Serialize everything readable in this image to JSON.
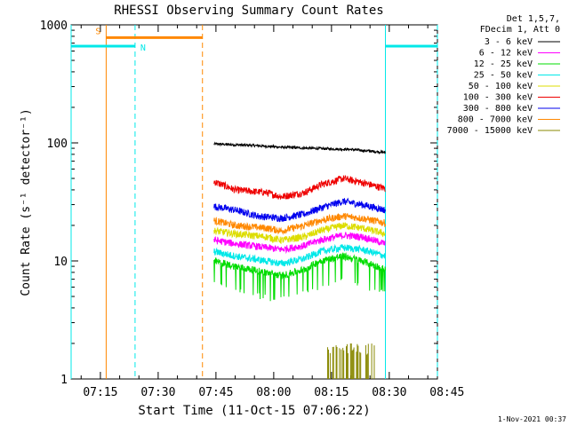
{
  "chart_data": {
    "type": "line",
    "title": "RHESSI Observing Summary Count Rates",
    "xlabel": "Start Time (11-Oct-15 07:06:22)",
    "ylabel": "Count Rate (s⁻¹ detector⁻¹)",
    "yscale": "log",
    "ylim": [
      1,
      1000
    ],
    "xlim_minutes": [
      7.4,
      102.5
    ],
    "x_ticks": [
      {
        "label": "07:15",
        "minute": 15
      },
      {
        "label": "07:30",
        "minute": 30
      },
      {
        "label": "07:45",
        "minute": 45
      },
      {
        "label": "08:00",
        "minute": 60
      },
      {
        "label": "08:15",
        "minute": 75
      },
      {
        "label": "08:30",
        "minute": 90
      },
      {
        "label": "08:45",
        "minute": 105
      }
    ],
    "y_ticks": [
      {
        "label": "1",
        "value": 1
      },
      {
        "label": "10",
        "value": 10
      },
      {
        "label": "100",
        "value": 100
      },
      {
        "label": "1000",
        "value": 1000
      }
    ],
    "legend": {
      "header": [
        "Det 1,5,7,",
        "FDecim 1, Att 0"
      ],
      "placement": "right",
      "entries": [
        {
          "label": "3 - 6 keV",
          "color": "#000000"
        },
        {
          "label": "6 - 12 keV",
          "color": "#ff00ff"
        },
        {
          "label": "12 - 25 keV",
          "color": "#00dd00"
        },
        {
          "label": "25 - 50 keV",
          "color": "#00e8e8"
        },
        {
          "label": "50 - 100 keV",
          "color": "#dddd00"
        },
        {
          "label": "100 - 300 keV",
          "color": "#ee0000"
        },
        {
          "label": "300 - 800 keV",
          "color": "#0000ee"
        },
        {
          "label": "800 - 7000 keV",
          "color": "#ff8800"
        },
        {
          "label": "7000 - 15000 keV",
          "color": "#888800"
        }
      ]
    },
    "time_range_minutes": [
      44.5,
      89.0
    ],
    "series": [
      {
        "name": "3 - 6 keV",
        "color": "#000000",
        "anchors": [
          [
            44.5,
            98
          ],
          [
            55,
            95
          ],
          [
            62,
            92
          ],
          [
            70,
            90
          ],
          [
            80,
            88
          ],
          [
            89,
            83
          ]
        ]
      },
      {
        "name": "100 - 300 keV",
        "color": "#ee0000",
        "anchors": [
          [
            44.5,
            47
          ],
          [
            50,
            40
          ],
          [
            58,
            38
          ],
          [
            62,
            35
          ],
          [
            68,
            38
          ],
          [
            72,
            44
          ],
          [
            78,
            50
          ],
          [
            82,
            47
          ],
          [
            89,
            41
          ]
        ]
      },
      {
        "name": "300 - 800 keV",
        "color": "#0000ee",
        "anchors": [
          [
            44.5,
            29
          ],
          [
            50,
            27
          ],
          [
            56,
            24
          ],
          [
            62,
            23
          ],
          [
            68,
            25
          ],
          [
            72,
            28
          ],
          [
            78,
            32
          ],
          [
            83,
            30
          ],
          [
            89,
            27
          ]
        ]
      },
      {
        "name": "800 - 7000 keV",
        "color": "#ff8800",
        "anchors": [
          [
            44.5,
            22
          ],
          [
            50,
            20
          ],
          [
            58,
            19
          ],
          [
            62,
            18
          ],
          [
            68,
            20
          ],
          [
            72,
            22
          ],
          [
            78,
            24
          ],
          [
            83,
            23
          ],
          [
            89,
            21
          ]
        ]
      },
      {
        "name": "50 - 100 keV",
        "color": "#dddd00",
        "anchors": [
          [
            44.5,
            18
          ],
          [
            50,
            17
          ],
          [
            58,
            16
          ],
          [
            62,
            15
          ],
          [
            68,
            16
          ],
          [
            72,
            18
          ],
          [
            78,
            20
          ],
          [
            83,
            19
          ],
          [
            89,
            17
          ]
        ]
      },
      {
        "name": "6 - 12 keV",
        "color": "#ff00ff",
        "anchors": [
          [
            44.5,
            15
          ],
          [
            50,
            14
          ],
          [
            58,
            13
          ],
          [
            62,
            12.5
          ],
          [
            68,
            13.5
          ],
          [
            72,
            15
          ],
          [
            78,
            16.5
          ],
          [
            83,
            16
          ],
          [
            89,
            14
          ]
        ]
      },
      {
        "name": "25 - 50 keV",
        "color": "#00e8e8",
        "anchors": [
          [
            44.5,
            12
          ],
          [
            50,
            11
          ],
          [
            58,
            10
          ],
          [
            62,
            9.5
          ],
          [
            68,
            10.5
          ],
          [
            72,
            12
          ],
          [
            78,
            13
          ],
          [
            83,
            12.5
          ],
          [
            89,
            11
          ]
        ]
      },
      {
        "name": "12 - 25 keV",
        "color": "#00dd00",
        "anchors": [
          [
            44.5,
            10
          ],
          [
            50,
            9
          ],
          [
            58,
            8
          ],
          [
            62,
            7.5
          ],
          [
            68,
            8.5
          ],
          [
            72,
            10
          ],
          [
            78,
            11
          ],
          [
            83,
            10
          ],
          [
            89,
            8.5
          ]
        ]
      }
    ],
    "spike_series": {
      "name": "7000 - 15000 keV",
      "color": "#888800",
      "range_minutes": [
        74,
        86.5
      ],
      "peak": 2
    },
    "markers": {
      "saa": {
        "label": "S",
        "color": "#ff8800",
        "solid_minute": 16.5,
        "dashed_minute": 41.5,
        "bar_from": 16.5,
        "bar_to": 41.5,
        "bar_value": 780
      },
      "night": {
        "label": "N",
        "color": "#00e8e8",
        "segments": [
          {
            "from": 7.4,
            "to": 24
          },
          {
            "from": 89,
            "to": 102.5
          }
        ],
        "bar_value": 660,
        "solid_minutes": [
          7.4,
          89
        ],
        "dashed_minutes": [
          24,
          102.5
        ]
      }
    },
    "timestamp": "1-Nov-2021 00:37"
  }
}
